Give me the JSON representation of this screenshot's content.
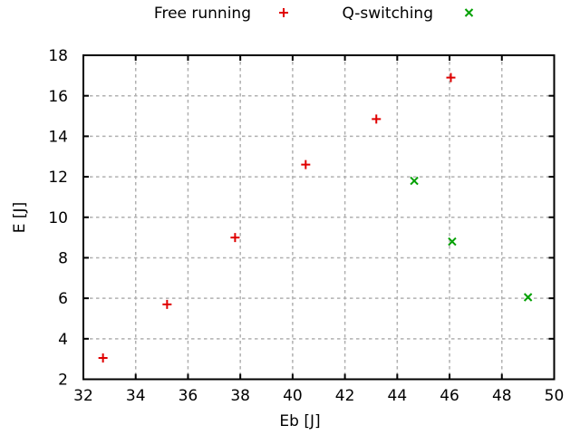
{
  "chart_data": {
    "type": "scatter",
    "title": "",
    "xlabel": "Eb [J]",
    "ylabel": "E [J]",
    "xlim": [
      32,
      50
    ],
    "ylim": [
      2,
      18
    ],
    "xticks": [
      32,
      34,
      36,
      38,
      40,
      42,
      44,
      46,
      48,
      50
    ],
    "yticks": [
      2,
      4,
      6,
      8,
      10,
      12,
      14,
      16,
      18
    ],
    "grid": true,
    "grid_style": "dashed",
    "legend_position": "top-center-outside",
    "series": [
      {
        "name": "Free running",
        "marker": "plus",
        "color": "#e00000",
        "points": [
          [
            32.75,
            3.05
          ],
          [
            35.2,
            5.7
          ],
          [
            37.8,
            9.0
          ],
          [
            40.5,
            12.6
          ],
          [
            43.2,
            14.85
          ],
          [
            46.05,
            16.9
          ]
        ]
      },
      {
        "name": "Q-switching",
        "marker": "cross",
        "color": "#00a000",
        "points": [
          [
            44.65,
            11.8
          ],
          [
            46.1,
            8.8
          ],
          [
            49.0,
            6.05
          ]
        ]
      }
    ]
  },
  "colors": {
    "background": "#ffffff",
    "axis": "#000000",
    "grid": "#b0b0b0",
    "text": "#000000",
    "series_red": "#e00000",
    "series_green": "#00a000"
  }
}
